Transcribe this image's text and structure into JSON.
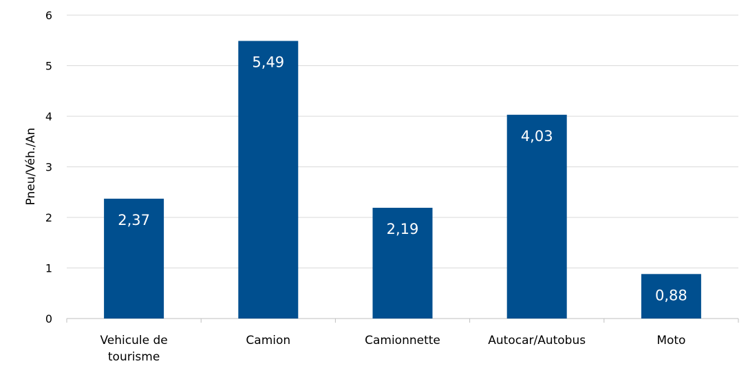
{
  "chart_data": {
    "type": "bar",
    "title": "",
    "xlabel": "",
    "ylabel": "Pneu/Véh./An",
    "categories": [
      [
        "Vehicule de",
        "tourisme"
      ],
      [
        "Camion"
      ],
      [
        "Camionnette"
      ],
      [
        "Autocar/Autobus"
      ],
      [
        "Moto"
      ]
    ],
    "values": [
      2.37,
      5.49,
      2.19,
      4.03,
      0.88
    ],
    "data_labels": [
      "2,37",
      "5,49",
      "2,19",
      "4,03",
      "0,88"
    ],
    "ylim": [
      0,
      6
    ],
    "yticks": [
      0,
      1,
      2,
      3,
      4,
      5,
      6
    ],
    "grid": true,
    "legend": "none",
    "colors": {
      "bar": "#004f8f",
      "grid": "#d9d9d9",
      "axis": "#bfbfbf",
      "data_label": "#ffffff"
    }
  }
}
